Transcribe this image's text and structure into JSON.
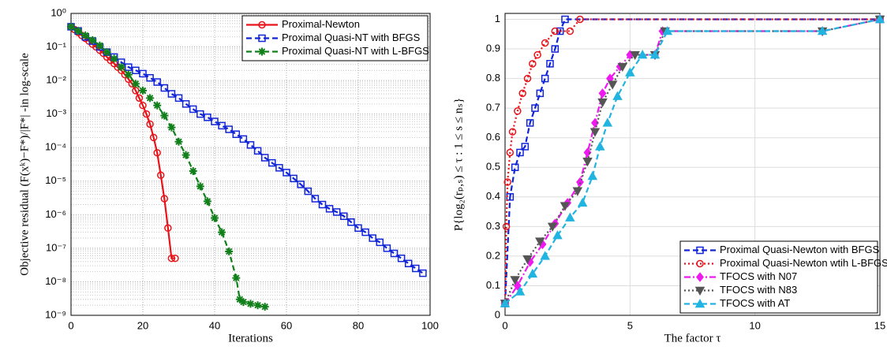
{
  "chart_data": [
    {
      "type": "line",
      "yscale": "log",
      "grid": true,
      "legend": "upper right",
      "xlabel": "Iterations",
      "ylabel": "Objective residual (F(xᵏ)−F*)/|F*| -in log-scale",
      "xlim": [
        0,
        100
      ],
      "xticks": [
        0,
        20,
        40,
        60,
        80,
        100
      ],
      "ylim": [
        1e-09,
        1
      ],
      "yticks": [
        {
          "value": 1e-09,
          "label": "10⁻⁹"
        },
        {
          "value": 1e-08,
          "label": "10⁻⁸"
        },
        {
          "value": 1e-07,
          "label": "10⁻⁷"
        },
        {
          "value": 1e-06,
          "label": "10⁻⁶"
        },
        {
          "value": 1e-05,
          "label": "10⁻⁵"
        },
        {
          "value": 0.0001,
          "label": "10⁻⁴"
        },
        {
          "value": 0.001,
          "label": "10⁻³"
        },
        {
          "value": 0.01,
          "label": "10⁻²"
        },
        {
          "value": 0.1,
          "label": "10⁻¹"
        },
        {
          "value": 1,
          "label": "10⁰"
        }
      ],
      "series": [
        {
          "name": "Proximal-Newton",
          "color": "#e8141a",
          "marker": "circle",
          "dash": "solid",
          "x": [
            0,
            1,
            2,
            3,
            4,
            5,
            6,
            7,
            8,
            9,
            10,
            11,
            12,
            13,
            14,
            15,
            16,
            17,
            18,
            19,
            20,
            21,
            22,
            23,
            24,
            25,
            26,
            27,
            28,
            29
          ],
          "values": [
            0.4,
            0.33,
            0.27,
            0.22,
            0.18,
            0.15,
            0.12,
            0.1,
            0.08,
            0.065,
            0.05,
            0.04,
            0.032,
            0.025,
            0.02,
            0.015,
            0.011,
            0.008,
            0.005,
            0.003,
            0.0018,
            0.001,
            0.0005,
            0.0002,
            7e-05,
            1.5e-05,
            3e-06,
            4e-07,
            5e-08,
            5e-08
          ]
        },
        {
          "name": "Proximal Quasi-NT with BFGS",
          "color": "#1024d8",
          "marker": "square",
          "dash": "dash",
          "x": [
            0,
            2,
            4,
            6,
            8,
            10,
            12,
            14,
            16,
            18,
            20,
            22,
            24,
            26,
            28,
            30,
            32,
            34,
            36,
            38,
            40,
            42,
            44,
            46,
            48,
            50,
            52,
            54,
            56,
            58,
            60,
            62,
            64,
            66,
            68,
            70,
            72,
            74,
            76,
            78,
            80,
            82,
            84,
            86,
            88,
            90,
            92,
            94,
            96,
            98
          ],
          "values": [
            0.4,
            0.3,
            0.2,
            0.15,
            0.1,
            0.07,
            0.05,
            0.035,
            0.025,
            0.02,
            0.016,
            0.012,
            0.009,
            0.006,
            0.004,
            0.003,
            0.002,
            0.0014,
            0.001,
            0.0008,
            0.0006,
            0.00045,
            0.00035,
            0.00025,
            0.00018,
            0.00012,
            8e-05,
            5e-05,
            3.5e-05,
            2.5e-05,
            1.8e-05,
            1.2e-05,
            8e-06,
            5e-06,
            3e-06,
            2e-06,
            1.5e-06,
            1.2e-06,
            9e-07,
            6e-07,
            4e-07,
            3e-07,
            2e-07,
            1.5e-07,
            1e-07,
            7e-08,
            5e-08,
            3.5e-08,
            2.5e-08,
            1.8e-08
          ]
        },
        {
          "name": "Proximal Quasi-NT with L-BFGS",
          "color": "#12801a",
          "marker": "star",
          "dash": "dash",
          "x": [
            0,
            2,
            4,
            6,
            8,
            10,
            12,
            14,
            16,
            18,
            20,
            22,
            24,
            26,
            28,
            30,
            32,
            34,
            36,
            38,
            40,
            42,
            44,
            46,
            47,
            48,
            50,
            52,
            54
          ],
          "values": [
            0.4,
            0.3,
            0.22,
            0.16,
            0.11,
            0.07,
            0.045,
            0.025,
            0.015,
            0.008,
            0.005,
            0.003,
            0.0018,
            0.0009,
            0.0004,
            0.00015,
            6e-05,
            2e-05,
            7e-06,
            2.5e-06,
            8e-07,
            3e-07,
            8e-08,
            1.3e-08,
            3e-09,
            2.5e-09,
            2.2e-09,
            2e-09,
            1.8e-09
          ]
        }
      ]
    },
    {
      "type": "line",
      "yscale": "linear",
      "grid": true,
      "legend": "lower right",
      "xlabel": "The factor τ",
      "ylabel": "P{log₂(rₚ,ₛ) ≤ τ : 1 ≤ s ≤ nₛ}",
      "xlim": [
        0,
        15
      ],
      "xticks": [
        0,
        5,
        10,
        15
      ],
      "ylim": [
        0,
        1.02
      ],
      "yticks": [
        0,
        0.1,
        0.2,
        0.3,
        0.4,
        0.5,
        0.6,
        0.7,
        0.8,
        0.9,
        1
      ],
      "series": [
        {
          "name": "Proximal Quasi-Newton with BFGS",
          "color": "#1024d8",
          "marker": "square",
          "dash": "dash",
          "x": [
            0,
            0.2,
            0.4,
            0.6,
            0.8,
            1,
            1.2,
            1.4,
            1.6,
            1.8,
            2,
            2.2,
            2.4,
            15
          ],
          "values": [
            0.04,
            0.4,
            0.5,
            0.55,
            0.57,
            0.65,
            0.7,
            0.75,
            0.8,
            0.85,
            0.9,
            0.96,
            1,
            1
          ]
        },
        {
          "name": "Proximal Quasi-Newton wtih L-BFGS",
          "color": "#e8141a",
          "marker": "circle",
          "dash": "dot",
          "x": [
            0,
            0.05,
            0.1,
            0.2,
            0.3,
            0.5,
            0.7,
            0.9,
            1.1,
            1.3,
            1.6,
            2,
            2.6,
            3,
            15
          ],
          "values": [
            0.04,
            0.3,
            0.45,
            0.55,
            0.62,
            0.69,
            0.75,
            0.8,
            0.85,
            0.88,
            0.92,
            0.96,
            0.96,
            1,
            1
          ]
        },
        {
          "name": "TFOCS with N07",
          "color": "#f018f0",
          "marker": "diamond",
          "dash": "dashdot",
          "x": [
            0,
            0.5,
            1,
            1.5,
            2,
            2.5,
            3,
            3.3,
            3.6,
            3.9,
            4.2,
            4.6,
            5,
            6,
            6.3,
            12.7,
            15
          ],
          "values": [
            0.04,
            0.1,
            0.18,
            0.24,
            0.31,
            0.38,
            0.45,
            0.55,
            0.65,
            0.75,
            0.8,
            0.84,
            0.88,
            0.88,
            0.96,
            0.96,
            1
          ]
        },
        {
          "name": "TFOCS with N83",
          "color": "#555555",
          "marker": "tridown",
          "dash": "dot",
          "x": [
            0,
            0.4,
            0.9,
            1.4,
            1.9,
            2.4,
            2.9,
            3.3,
            3.6,
            3.9,
            4.3,
            4.7,
            5.2,
            6,
            6.4,
            12.7,
            15
          ],
          "values": [
            0.04,
            0.12,
            0.19,
            0.25,
            0.3,
            0.37,
            0.42,
            0.52,
            0.62,
            0.72,
            0.78,
            0.84,
            0.88,
            0.88,
            0.96,
            0.96,
            1
          ]
        },
        {
          "name": "TFOCS with AT",
          "color": "#22b4e0",
          "marker": "triup",
          "dash": "dash",
          "x": [
            0,
            0.6,
            1.1,
            1.6,
            2.1,
            2.6,
            3.1,
            3.5,
            3.8,
            4.1,
            4.5,
            5,
            5.5,
            6,
            6.5,
            12.7,
            15
          ],
          "values": [
            0.04,
            0.08,
            0.14,
            0.2,
            0.27,
            0.33,
            0.38,
            0.47,
            0.57,
            0.65,
            0.74,
            0.82,
            0.88,
            0.88,
            0.96,
            0.96,
            1
          ]
        }
      ]
    }
  ]
}
